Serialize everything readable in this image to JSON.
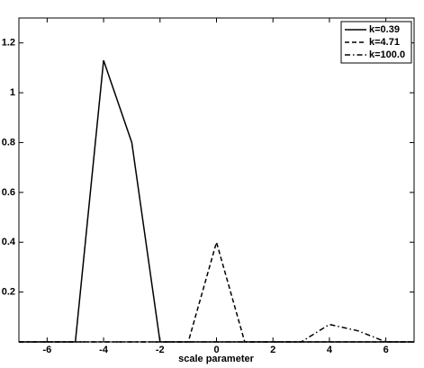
{
  "chart_data": {
    "type": "line",
    "xlabel": "scale parameter",
    "x": [
      -7,
      -6,
      -5,
      -4,
      -3,
      -2,
      -1,
      0,
      1,
      2,
      3,
      4,
      5,
      6,
      7
    ],
    "series": [
      {
        "name": "k=0.39",
        "color": "#000000",
        "style": "solid",
        "values": [
          0,
          0,
          0,
          1.13,
          0.8,
          0,
          0,
          0,
          0,
          0,
          0,
          0,
          0,
          0,
          0
        ]
      },
      {
        "name": "k=4.71",
        "color": "#000000",
        "style": "dashed",
        "values": [
          0,
          0,
          0,
          0,
          0,
          0,
          0,
          0.4,
          0,
          0,
          0,
          0,
          0,
          0,
          0
        ]
      },
      {
        "name": "k=100.0",
        "color": "#000000",
        "style": "dashdot",
        "values": [
          0,
          0,
          0,
          0,
          0,
          0,
          0,
          0,
          0,
          0,
          0,
          0.07,
          0.045,
          0,
          0
        ]
      }
    ],
    "xlim": [
      -7,
      7
    ],
    "xticks": [
      -6,
      -4,
      -2,
      0,
      2,
      4,
      6
    ],
    "ylim": [
      0,
      1.3
    ],
    "yticks": [
      0.2,
      0.4,
      0.6,
      0.8,
      1,
      1.2
    ],
    "grid": false,
    "legend": "upper right"
  }
}
